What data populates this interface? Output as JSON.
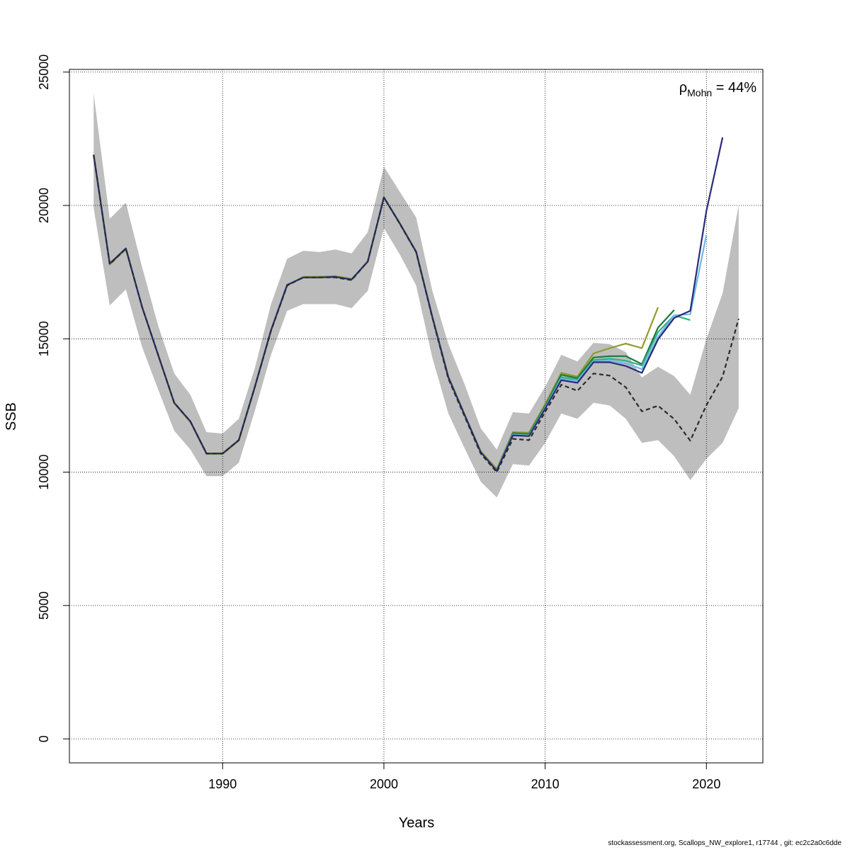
{
  "chart_data": {
    "type": "line",
    "xlabel": "Years",
    "ylabel": "SSB",
    "xlim": [
      1980.5,
      2023.5
    ],
    "ylim": [
      -900,
      25100
    ],
    "xticks": [
      1990,
      2000,
      2010,
      2020
    ],
    "yticks": [
      0,
      5000,
      10000,
      15000,
      20000,
      25000
    ],
    "grid": true,
    "annotation": {
      "rho_symbol": "ρ",
      "rho_subscript": "Mohn",
      "rho_value": " = 44%"
    },
    "confidence_band": {
      "x": [
        1982,
        1983,
        1984,
        1985,
        1986,
        1987,
        1988,
        1989,
        1990,
        1991,
        1992,
        1993,
        1994,
        1995,
        1996,
        1997,
        1998,
        1999,
        2000,
        2001,
        2002,
        2003,
        2004,
        2005,
        2006,
        2007,
        2008,
        2009,
        2010,
        2011,
        2012,
        2013,
        2014,
        2015,
        2016,
        2017,
        2018,
        2019,
        2020,
        2021,
        2022
      ],
      "upper": [
        24200,
        19500,
        20100,
        17700,
        15500,
        13700,
        12900,
        11500,
        11450,
        12000,
        13900,
        16300,
        18000,
        18300,
        18250,
        18350,
        18200,
        19000,
        21450,
        20500,
        19550,
        16800,
        14800,
        13300,
        11650,
        10850,
        12250,
        12200,
        13200,
        14400,
        14150,
        14850,
        14800,
        14500,
        13550,
        13950,
        13600,
        12900,
        15000,
        16700,
        20000
      ],
      "lower": [
        19900,
        16250,
        16850,
        14700,
        13100,
        11550,
        10850,
        9850,
        9850,
        10350,
        12300,
        14400,
        16050,
        16300,
        16300,
        16300,
        16150,
        16800,
        19150,
        18150,
        17000,
        14300,
        12200,
        10900,
        9650,
        9050,
        10300,
        10250,
        11100,
        12200,
        12000,
        12600,
        12500,
        12000,
        11100,
        11200,
        10600,
        9700,
        10500,
        11100,
        12400
      ]
    },
    "series": [
      {
        "values": [
          21900,
          17800,
          18380,
          16200,
          14400,
          12600,
          11900,
          10700,
          10700,
          11200,
          13200,
          15300,
          17000,
          17300,
          17300,
          17300,
          17200,
          17900,
          20300,
          19300,
          18250,
          15800,
          13500,
          12100,
          10700,
          10000,
          11250,
          11200,
          12260,
          13280,
          13050,
          13700,
          13620,
          13180,
          12280,
          12490,
          11990,
          11180,
          12510,
          13580,
          15750
        ],
        "color": "#2b2b2b",
        "dashed": true
      },
      {
        "values": [
          21900,
          17820,
          18390,
          16200,
          14400,
          12600,
          11900,
          10700,
          10700,
          11200,
          13200,
          15320,
          17020,
          17300,
          17300,
          17320,
          17220,
          17900,
          20300,
          19310,
          18260,
          15820,
          13550,
          12150,
          10750,
          10050,
          11380,
          11350,
          12380,
          13450,
          13350,
          14120,
          14120,
          13980,
          13720,
          14980,
          15780,
          16050,
          19800,
          22550
        ],
        "color": "#2a2a7a",
        "dashed": false
      },
      {
        "values": [
          21900,
          17820,
          18390,
          16200,
          14400,
          12600,
          11900,
          10700,
          10700,
          11200,
          13200,
          15320,
          17020,
          17300,
          17300,
          17320,
          17220,
          17900,
          20300,
          19310,
          18260,
          15820,
          13550,
          12150,
          10750,
          10050,
          11400,
          11370,
          12400,
          13500,
          13420,
          14150,
          14180,
          14080,
          13860,
          15080,
          15880,
          15920,
          18900
        ],
        "color": "#6fb8e8",
        "dashed": false
      },
      {
        "values": [
          21900,
          17820,
          18390,
          16200,
          14400,
          12600,
          11900,
          10700,
          10700,
          11200,
          13200,
          15320,
          17020,
          17300,
          17300,
          17320,
          17220,
          17900,
          20300,
          19310,
          18260,
          15820,
          13550,
          12150,
          10750,
          10050,
          11420,
          11390,
          12430,
          13560,
          13460,
          14200,
          14250,
          14180,
          14000,
          15250,
          15880,
          15700
        ],
        "color": "#2fb08a",
        "dashed": false
      },
      {
        "values": [
          21900,
          17820,
          18390,
          16200,
          14400,
          12600,
          11900,
          10700,
          10700,
          11200,
          13200,
          15320,
          17020,
          17300,
          17300,
          17320,
          17220,
          17900,
          20300,
          19310,
          18260,
          15820,
          13550,
          12150,
          10750,
          10050,
          11460,
          11430,
          12480,
          13650,
          13520,
          14300,
          14350,
          14350,
          14050,
          15420,
          16080
        ],
        "color": "#1a7a3a",
        "dashed": false
      },
      {
        "values": [
          21900,
          17780,
          18360,
          16200,
          14400,
          12580,
          11880,
          10680,
          10680,
          11180,
          13180,
          15300,
          17000,
          17320,
          17330,
          17350,
          17250,
          17880,
          20310,
          19330,
          18280,
          15840,
          13600,
          12180,
          10790,
          10120,
          11500,
          11480,
          12550,
          13720,
          13580,
          14450,
          14650,
          14820,
          14650,
          16180
        ],
        "color": "#8f9a2a",
        "dashed": false
      }
    ]
  },
  "footer": "stockassessment.org, Scallops_NW_explore1, r17744 , git: ec2c2a0c6dde"
}
